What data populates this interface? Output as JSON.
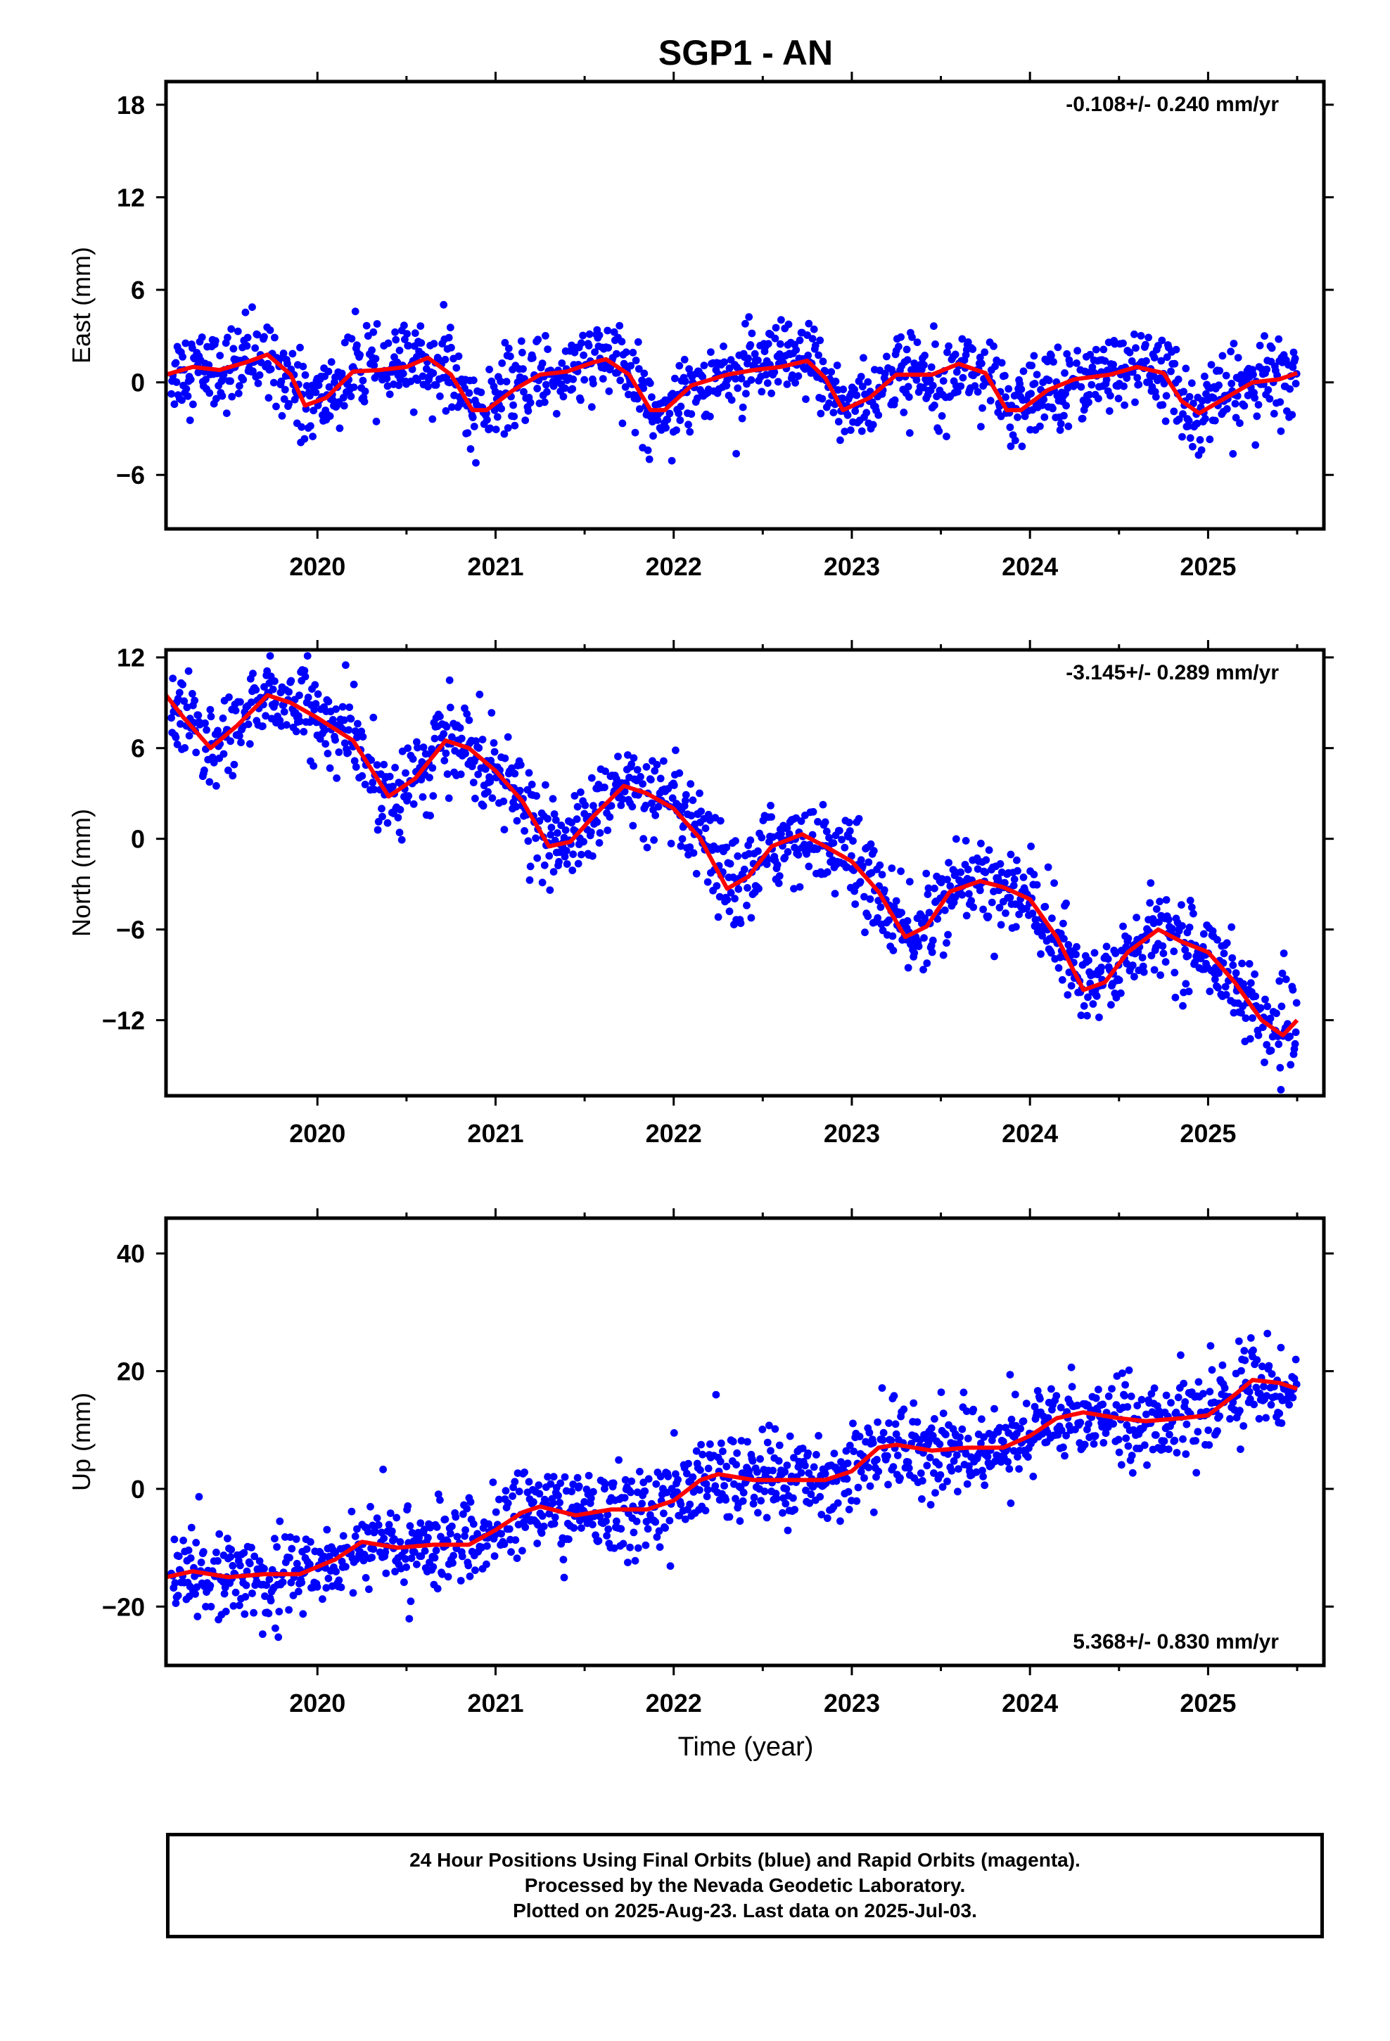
{
  "colors": {
    "points": "#0000ff",
    "fit": "#ff0000",
    "axes": "#000000"
  },
  "chart_data": {
    "type": "scatter",
    "title": "SGP1 - AN",
    "xlabel": "Time (year)",
    "xlim": [
      2019.15,
      2025.65
    ],
    "xticks": [
      "2020",
      "2021",
      "2022",
      "2023",
      "2024",
      "2025"
    ],
    "panels": [
      {
        "name": "east",
        "ylabel": "East (mm)",
        "ylim": [
          -9.5,
          19.5
        ],
        "yticks": [
          "18",
          "12",
          "6",
          "0",
          "-6"
        ],
        "rate": "-0.108+/- 0.240 mm/yr",
        "rate_position": "top-right",
        "fit_x": [
          2019.15,
          2019.3,
          2019.45,
          2019.6,
          2019.72,
          2019.85,
          2019.93,
          2020.05,
          2020.2,
          2020.35,
          2020.5,
          2020.62,
          2020.75,
          2020.87,
          2020.95,
          2021.1,
          2021.25,
          2021.4,
          2021.55,
          2021.62,
          2021.75,
          2021.87,
          2021.95,
          2022.1,
          2022.3,
          2022.45,
          2022.6,
          2022.75,
          2022.85,
          2022.95,
          2023.1,
          2023.25,
          2023.45,
          2023.6,
          2023.75,
          2023.87,
          2023.95,
          2024.1,
          2024.25,
          2024.45,
          2024.6,
          2024.75,
          2024.85,
          2024.95,
          2025.1,
          2025.25,
          2025.4,
          2025.5
        ],
        "fit_y": [
          0.5,
          1.0,
          0.8,
          1.3,
          1.8,
          0.5,
          -1.5,
          -1.0,
          0.7,
          0.8,
          1.0,
          1.6,
          0.5,
          -1.8,
          -1.8,
          -0.5,
          0.5,
          0.7,
          1.3,
          1.5,
          0.5,
          -1.8,
          -1.8,
          -0.2,
          0.5,
          0.8,
          1.0,
          1.4,
          0.3,
          -1.8,
          -1.0,
          0.5,
          0.5,
          1.2,
          0.6,
          -1.8,
          -1.8,
          -0.5,
          0.2,
          0.5,
          1.0,
          0.6,
          -1.2,
          -2.0,
          -1.0,
          0.0,
          0.2,
          0.6
        ]
      },
      {
        "name": "north",
        "ylabel": "North (mm)",
        "ylim": [
          -17,
          12.5
        ],
        "yticks": [
          "12",
          "6",
          "0",
          "-6",
          "-12"
        ],
        "rate": "-3.145+/- 0.289 mm/yr",
        "rate_position": "top-right",
        "fit_x": [
          2019.15,
          2019.25,
          2019.4,
          2019.55,
          2019.72,
          2019.85,
          2020.0,
          2020.2,
          2020.4,
          2020.55,
          2020.72,
          2020.85,
          2021.0,
          2021.15,
          2021.3,
          2021.42,
          2021.55,
          2021.72,
          2021.85,
          2022.0,
          2022.15,
          2022.3,
          2022.42,
          2022.55,
          2022.72,
          2022.85,
          2023.0,
          2023.15,
          2023.3,
          2023.42,
          2023.55,
          2023.72,
          2023.85,
          2024.0,
          2024.15,
          2024.3,
          2024.42,
          2024.55,
          2024.72,
          2024.85,
          2025.0,
          2025.15,
          2025.3,
          2025.42,
          2025.5
        ],
        "fit_y": [
          9.5,
          8.0,
          6.0,
          7.5,
          9.5,
          9.0,
          8.0,
          6.5,
          2.8,
          4.0,
          6.5,
          6.0,
          4.5,
          2.5,
          -0.5,
          -0.2,
          1.5,
          3.5,
          3.0,
          2.0,
          0.0,
          -3.3,
          -2.5,
          -0.5,
          0.3,
          -0.5,
          -1.5,
          -3.5,
          -6.5,
          -5.8,
          -3.5,
          -2.8,
          -3.2,
          -4.0,
          -6.5,
          -10.0,
          -9.5,
          -7.5,
          -6.0,
          -6.8,
          -7.5,
          -9.5,
          -12.0,
          -13.0,
          -12.0
        ]
      },
      {
        "name": "up",
        "ylabel": "Up (mm)",
        "ylim": [
          -30,
          46
        ],
        "yticks": [
          "40",
          "20",
          "0",
          "-20"
        ],
        "rate": "5.368+/- 0.830 mm/yr",
        "rate_position": "bottom-right",
        "fit_x": [
          2019.15,
          2019.3,
          2019.5,
          2019.7,
          2019.9,
          2020.1,
          2020.25,
          2020.45,
          2020.65,
          2020.85,
          2021.0,
          2021.15,
          2021.25,
          2021.45,
          2021.65,
          2021.85,
          2022.0,
          2022.15,
          2022.25,
          2022.45,
          2022.65,
          2022.85,
          2023.0,
          2023.15,
          2023.25,
          2023.45,
          2023.65,
          2023.85,
          2024.0,
          2024.15,
          2024.3,
          2024.5,
          2024.65,
          2024.85,
          2025.0,
          2025.15,
          2025.25,
          2025.4,
          2025.5
        ],
        "fit_y": [
          -15,
          -14,
          -15,
          -14.5,
          -14.5,
          -12,
          -9,
          -10,
          -9.5,
          -9.5,
          -7,
          -4,
          -3,
          -4.5,
          -3.5,
          -3.5,
          -2,
          1.5,
          2.5,
          1.5,
          1.5,
          1.5,
          3,
          7,
          7.5,
          6.5,
          7,
          7,
          9,
          12,
          13,
          12,
          11.5,
          12,
          12.5,
          16,
          18.5,
          18,
          17
        ]
      }
    ]
  },
  "footer": {
    "line1": "24 Hour Positions Using Final Orbits (blue) and Rapid Orbits (magenta).",
    "line2": "Processed by the Nevada Geodetic Laboratory.",
    "line3": "Plotted on 2025-Aug-23. Last data on 2025-Jul-03."
  }
}
